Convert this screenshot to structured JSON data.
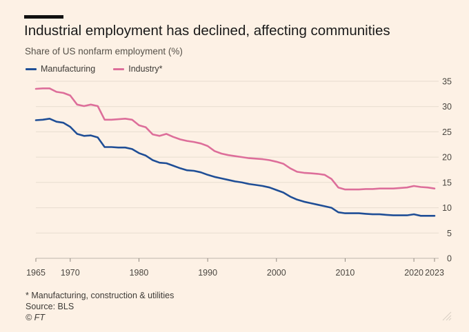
{
  "header": {
    "title": "Industrial employment has declined, affecting communities",
    "subtitle": "Share of US nonfarm employment (%)"
  },
  "legend": [
    {
      "label": "Manufacturing",
      "color": "#1f4e96"
    },
    {
      "label": "Industry*",
      "color": "#dd6e9a"
    }
  ],
  "footer": {
    "footnote": "* Manufacturing, construction & utilities",
    "source": "Source: BLS",
    "credit": "© FT"
  },
  "chart_data": {
    "type": "line",
    "title": "Industrial employment has declined, affecting communities",
    "ylabel": "Share of US nonfarm employment (%)",
    "xlabel": "",
    "xlim": [
      1965,
      2023
    ],
    "ylim": [
      0,
      35
    ],
    "grid": true,
    "legend_position": "top-left",
    "x_ticks": [
      1965,
      1970,
      1980,
      1990,
      2000,
      2010,
      2020,
      2023
    ],
    "x_tick_labels": [
      "1965",
      "1970",
      "1980",
      "1990",
      "2000",
      "2010",
      "2020",
      "2023"
    ],
    "y_ticks": [
      0,
      5,
      10,
      15,
      20,
      25,
      30,
      35
    ],
    "y_tick_labels": [
      "0",
      "5",
      "10",
      "15",
      "20",
      "25",
      "30",
      "35"
    ],
    "series": [
      {
        "name": "Manufacturing",
        "color": "#1f4e96",
        "points": [
          [
            1965,
            27.3
          ],
          [
            1966,
            27.4
          ],
          [
            1967,
            27.6
          ],
          [
            1968,
            27.0
          ],
          [
            1969,
            26.8
          ],
          [
            1970,
            26.0
          ],
          [
            1971,
            24.6
          ],
          [
            1972,
            24.2
          ],
          [
            1973,
            24.3
          ],
          [
            1974,
            23.9
          ],
          [
            1975,
            22.0
          ],
          [
            1976,
            22.0
          ],
          [
            1977,
            21.9
          ],
          [
            1978,
            21.9
          ],
          [
            1979,
            21.6
          ],
          [
            1980,
            20.8
          ],
          [
            1981,
            20.3
          ],
          [
            1982,
            19.4
          ],
          [
            1983,
            18.9
          ],
          [
            1984,
            18.8
          ],
          [
            1985,
            18.3
          ],
          [
            1986,
            17.8
          ],
          [
            1987,
            17.4
          ],
          [
            1988,
            17.3
          ],
          [
            1989,
            17.0
          ],
          [
            1990,
            16.5
          ],
          [
            1991,
            16.1
          ],
          [
            1992,
            15.8
          ],
          [
            1993,
            15.5
          ],
          [
            1994,
            15.2
          ],
          [
            1995,
            15.0
          ],
          [
            1996,
            14.7
          ],
          [
            1997,
            14.5
          ],
          [
            1998,
            14.3
          ],
          [
            1999,
            14.0
          ],
          [
            2000,
            13.5
          ],
          [
            2001,
            13.0
          ],
          [
            2002,
            12.2
          ],
          [
            2003,
            11.6
          ],
          [
            2004,
            11.2
          ],
          [
            2005,
            10.9
          ],
          [
            2006,
            10.6
          ],
          [
            2007,
            10.3
          ],
          [
            2008,
            10.0
          ],
          [
            2009,
            9.1
          ],
          [
            2010,
            8.9
          ],
          [
            2011,
            8.9
          ],
          [
            2012,
            8.9
          ],
          [
            2013,
            8.8
          ],
          [
            2014,
            8.7
          ],
          [
            2015,
            8.7
          ],
          [
            2016,
            8.6
          ],
          [
            2017,
            8.5
          ],
          [
            2018,
            8.5
          ],
          [
            2019,
            8.5
          ],
          [
            2020,
            8.7
          ],
          [
            2021,
            8.4
          ],
          [
            2022,
            8.4
          ],
          [
            2023,
            8.4
          ]
        ]
      },
      {
        "name": "Industry*",
        "color": "#dd6e9a",
        "points": [
          [
            1965,
            33.5
          ],
          [
            1966,
            33.6
          ],
          [
            1967,
            33.6
          ],
          [
            1968,
            32.9
          ],
          [
            1969,
            32.7
          ],
          [
            1970,
            32.2
          ],
          [
            1971,
            30.4
          ],
          [
            1972,
            30.1
          ],
          [
            1973,
            30.4
          ],
          [
            1974,
            30.1
          ],
          [
            1975,
            27.4
          ],
          [
            1976,
            27.4
          ],
          [
            1977,
            27.5
          ],
          [
            1978,
            27.6
          ],
          [
            1979,
            27.4
          ],
          [
            1980,
            26.3
          ],
          [
            1981,
            25.9
          ],
          [
            1982,
            24.5
          ],
          [
            1983,
            24.2
          ],
          [
            1984,
            24.6
          ],
          [
            1985,
            24.0
          ],
          [
            1986,
            23.5
          ],
          [
            1987,
            23.2
          ],
          [
            1988,
            23.0
          ],
          [
            1989,
            22.7
          ],
          [
            1990,
            22.2
          ],
          [
            1991,
            21.2
          ],
          [
            1992,
            20.7
          ],
          [
            1993,
            20.4
          ],
          [
            1994,
            20.2
          ],
          [
            1995,
            20.0
          ],
          [
            1996,
            19.8
          ],
          [
            1997,
            19.7
          ],
          [
            1998,
            19.6
          ],
          [
            1999,
            19.4
          ],
          [
            2000,
            19.1
          ],
          [
            2001,
            18.7
          ],
          [
            2002,
            17.8
          ],
          [
            2003,
            17.1
          ],
          [
            2004,
            16.9
          ],
          [
            2005,
            16.8
          ],
          [
            2006,
            16.7
          ],
          [
            2007,
            16.5
          ],
          [
            2008,
            15.7
          ],
          [
            2009,
            14.0
          ],
          [
            2010,
            13.6
          ],
          [
            2011,
            13.6
          ],
          [
            2012,
            13.6
          ],
          [
            2013,
            13.7
          ],
          [
            2014,
            13.7
          ],
          [
            2015,
            13.8
          ],
          [
            2016,
            13.8
          ],
          [
            2017,
            13.8
          ],
          [
            2018,
            13.9
          ],
          [
            2019,
            14.0
          ],
          [
            2020,
            14.3
          ],
          [
            2021,
            14.1
          ],
          [
            2022,
            14.0
          ],
          [
            2023,
            13.8
          ]
        ]
      }
    ]
  }
}
